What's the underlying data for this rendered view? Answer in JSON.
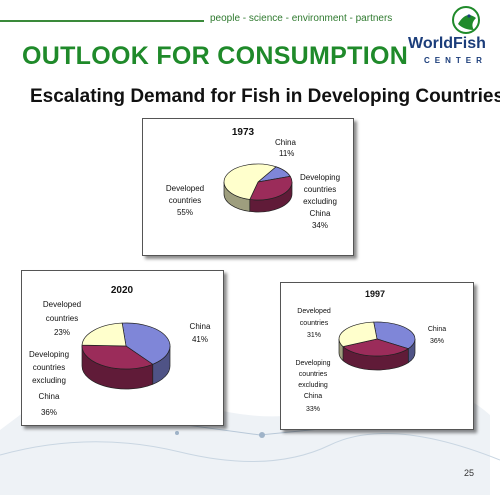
{
  "header": {
    "tagline": "people - science - environment - partners",
    "title": "OUTLOOK FOR CONSUMPTION",
    "subtitle": "Escalating Demand for Fish in Developing Countries"
  },
  "logo": {
    "name": "WorldFish",
    "sub": "CENTER"
  },
  "footer": {
    "page_number": "25"
  },
  "colors": {
    "developed": "#ffffcc",
    "developing_excl_china": "#9b2c5a",
    "china": "#7f86d8",
    "brand_green": "#1f8a2a",
    "logo_blue": "#1b3d7a"
  },
  "chart_data": [
    {
      "type": "pie",
      "title": "1973",
      "categories": [
        "China",
        "Developing countries excluding China",
        "Developed countries"
      ],
      "values": [
        11,
        34,
        55
      ],
      "labels": {
        "china": [
          "China",
          "11%"
        ],
        "developing": [
          "Developing",
          "countries",
          "excluding",
          "China",
          "34%"
        ],
        "developed": [
          "Developed",
          "countries",
          "55%"
        ]
      }
    },
    {
      "type": "pie",
      "title": "2020",
      "categories": [
        "China",
        "Developing countries excluding China",
        "Developed countries"
      ],
      "values": [
        41,
        36,
        23
      ],
      "labels": {
        "china": [
          "China",
          "41%"
        ],
        "developing": [
          "Developing",
          "countries",
          "excluding",
          "China",
          "36%"
        ],
        "developed": [
          "Developed",
          "countries",
          "23%"
        ]
      }
    },
    {
      "type": "pie",
      "title": "1997",
      "categories": [
        "China",
        "Developing countries excluding China",
        "Developed countries"
      ],
      "values": [
        36,
        33,
        31
      ],
      "labels": {
        "china": [
          "China",
          "36%"
        ],
        "developing": [
          "Developing",
          "countries",
          "excluding",
          "China",
          "33%"
        ],
        "developed": [
          "Developed",
          "countries",
          "31%"
        ]
      }
    }
  ]
}
